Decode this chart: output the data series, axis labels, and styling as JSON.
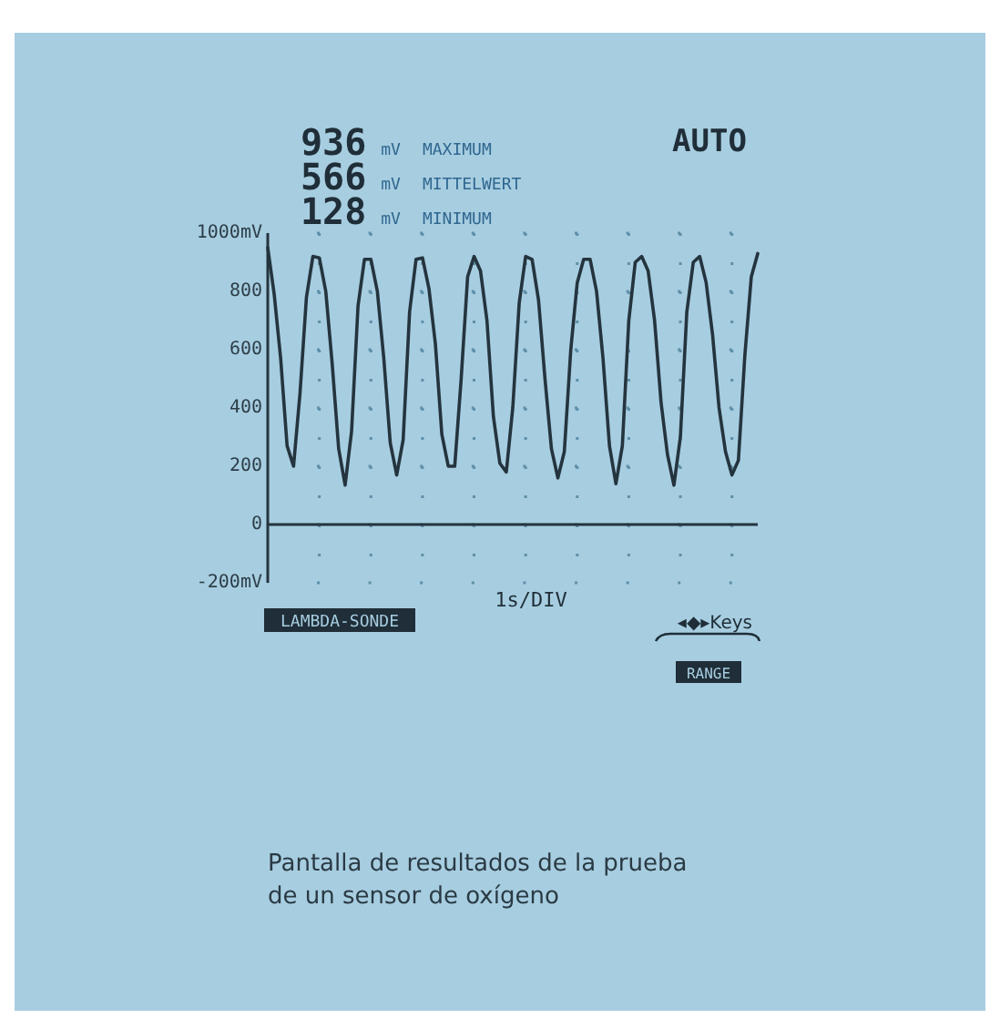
{
  "chart_data": {
    "type": "line",
    "xlabel": "1s/DIV",
    "categories": [
      null,
      null,
      null,
      null,
      null,
      null,
      null,
      null,
      null,
      null,
      null,
      null,
      null,
      null,
      null,
      null,
      null,
      null,
      null,
      null,
      null,
      null,
      null,
      null,
      null,
      null,
      null,
      null,
      null,
      null,
      null,
      null,
      null,
      null,
      null,
      null,
      null,
      null,
      null,
      null,
      null,
      null,
      null,
      null,
      null,
      null,
      null,
      null,
      null,
      null,
      null,
      null,
      null,
      null,
      null,
      null,
      null,
      null,
      null,
      null,
      null,
      null,
      null,
      null,
      null,
      null,
      null,
      null,
      null,
      null,
      null,
      null,
      null,
      null,
      null,
      null,
      null
    ],
    "series": [
      {
        "color": "#24343e",
        "values": [
          950,
          790,
          570,
          270,
          200,
          450,
          780,
          920,
          915,
          800,
          550,
          260,
          135,
          320,
          750,
          910,
          910,
          800,
          570,
          280,
          170,
          290,
          730,
          910,
          915,
          810,
          620,
          310,
          200,
          200,
          500,
          850,
          920,
          870,
          700,
          370,
          210,
          180,
          400,
          760,
          920,
          910,
          770,
          500,
          260,
          160,
          250,
          600,
          830,
          910,
          910,
          800,
          570,
          270,
          140,
          270,
          700,
          900,
          920,
          870,
          700,
          420,
          240,
          135,
          300,
          730,
          900,
          920,
          830,
          650,
          400,
          250,
          170,
          220,
          580,
          850,
          930
        ]
      }
    ],
    "ylim": [
      -200,
      1000
    ],
    "yticks": [
      {
        "value": -200,
        "label": "-200mV"
      },
      0,
      200,
      400,
      600,
      800,
      {
        "value": 1000,
        "label": "1000mV"
      }
    ],
    "grid": true,
    "annotations": [
      "936 mV MAXIMUM",
      "566 mV MITTELWERT",
      "128 mV MINIMUM",
      "AUTO",
      "LAMBDA-SONDE",
      "◂◆▸Keys",
      "RANGE",
      "Pantalla de resultados de la prueba\nde un sensor de oxígeno"
    ]
  }
}
